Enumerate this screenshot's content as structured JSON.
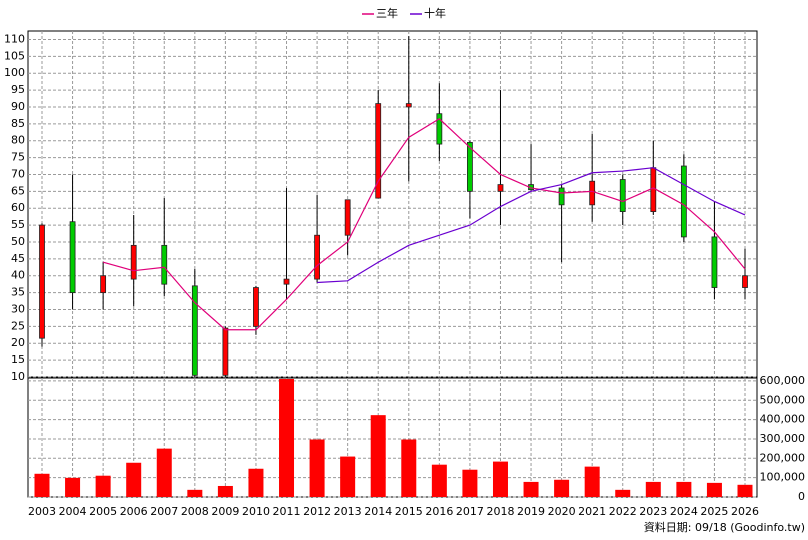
{
  "chart_data": {
    "type": "candlestick",
    "categories": [
      "2003",
      "2004",
      "2005",
      "2006",
      "2007",
      "2008",
      "2009",
      "2010",
      "2011",
      "2012",
      "2013",
      "2014",
      "2015",
      "2016",
      "2017",
      "2018",
      "2019",
      "2020",
      "2021",
      "2022",
      "2023",
      "2024",
      "2025",
      "2026"
    ],
    "open": [
      21.5,
      56,
      35,
      39,
      49,
      37,
      10.5,
      25,
      37.5,
      39,
      52,
      63,
      90,
      88,
      79.5,
      65,
      67,
      66,
      61,
      68.5,
      59,
      72.5,
      51.5,
      36.5
    ],
    "high": [
      55.5,
      70,
      44,
      58,
      63,
      42,
      25,
      37,
      66,
      64,
      62.5,
      95,
      111,
      97,
      80,
      95,
      79,
      67,
      82,
      70,
      80,
      76,
      62,
      48
    ],
    "low": [
      19,
      30,
      30,
      31,
      34,
      10,
      10,
      22.5,
      33,
      38,
      46,
      63,
      68,
      74,
      57,
      55,
      65,
      44,
      56,
      55,
      58,
      50,
      33,
      33
    ],
    "close": [
      55,
      35,
      40,
      49,
      37.5,
      10.5,
      24.5,
      36.5,
      39,
      52,
      62.5,
      91,
      91,
      79,
      65,
      67,
      65.5,
      61,
      68,
      59,
      72,
      51.5,
      36.5,
      40
    ],
    "up_color": "#ff0000",
    "down_color": "#00cc00",
    "series": [
      {
        "name": "三年",
        "color": "#e0007a",
        "values": [
          null,
          null,
          44,
          41.5,
          42.5,
          32,
          24,
          24,
          33,
          43,
          50,
          68,
          81,
          86.5,
          78,
          70,
          66,
          64.5,
          65,
          62,
          66,
          61,
          53,
          42
        ]
      },
      {
        "name": "十年",
        "color": "#6a00d0",
        "values": [
          null,
          null,
          null,
          null,
          null,
          null,
          null,
          null,
          null,
          38,
          38.5,
          44,
          49,
          52,
          55,
          60.5,
          65,
          67,
          70.5,
          71,
          72,
          67,
          62,
          58
        ]
      }
    ],
    "ylim": [
      10,
      112.5
    ],
    "yticks": [
      10,
      15,
      20,
      25,
      30,
      35,
      40,
      45,
      50,
      55,
      60,
      65,
      70,
      75,
      80,
      85,
      90,
      95,
      100,
      105,
      110
    ],
    "volume": {
      "color": "#ff0000",
      "values": [
        120000,
        99000,
        110000,
        177000,
        250000,
        37000,
        57000,
        146000,
        610000,
        297000,
        209000,
        423000,
        297000,
        167000,
        141000,
        183000,
        78000,
        89000,
        157000,
        37000,
        78000,
        78000,
        73000,
        63000
      ],
      "ylim": [
        0,
        615000
      ],
      "yticks": [
        0,
        {
          "value": 100000,
          "label": "100,000"
        },
        {
          "value": 200000,
          "label": "200,000"
        },
        {
          "value": 300000,
          "label": "300,000"
        },
        {
          "value": 400000,
          "label": "400,000"
        },
        {
          "value": 500000,
          "label": "500,000"
        },
        {
          "value": 600000,
          "label": "600,000"
        }
      ]
    },
    "grid": true,
    "footer": "資料日期: 09/18 (Goodinfo.tw)"
  }
}
